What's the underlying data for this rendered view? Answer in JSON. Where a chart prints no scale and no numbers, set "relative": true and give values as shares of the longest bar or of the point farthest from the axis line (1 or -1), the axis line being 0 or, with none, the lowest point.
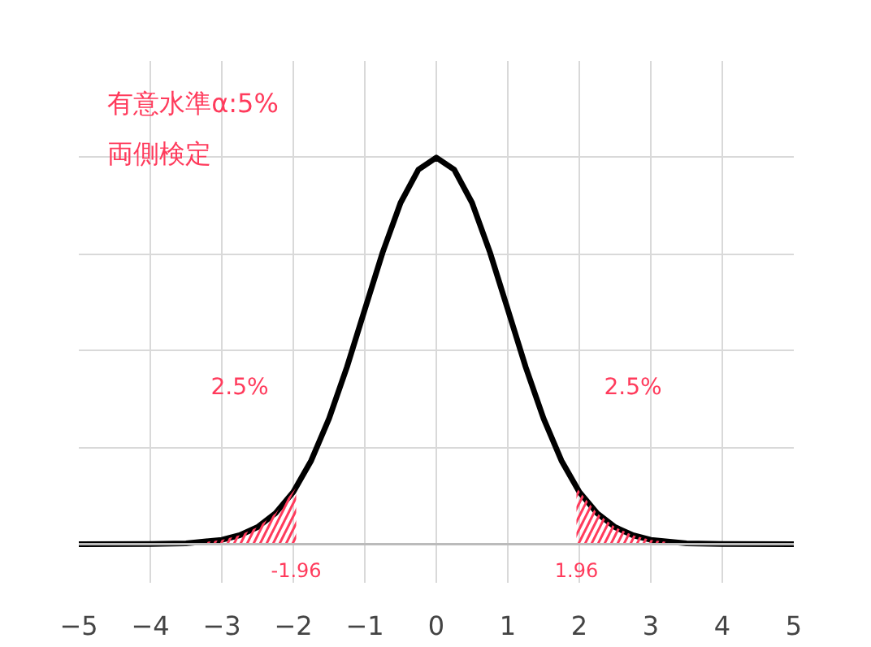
{
  "chart_data": {
    "type": "line",
    "relative": true,
    "grid": true,
    "tick_labels": "x",
    "xlim": [
      -5,
      5
    ],
    "xticks": [
      -5,
      -4,
      -3,
      -2,
      -1,
      0,
      1,
      2,
      3,
      4,
      5
    ],
    "series": [
      {
        "color": "#000000",
        "x": [
          -5,
          -4,
          -3.5,
          -3,
          -2.75,
          -2.5,
          -2.25,
          -2,
          -1.75,
          -1.5,
          -1.25,
          -1,
          -0.75,
          -0.5,
          -0.25,
          0,
          0.25,
          0.5,
          0.75,
          1,
          1.25,
          1.5,
          1.75,
          2,
          2.25,
          2.5,
          2.75,
          3,
          3.5,
          4,
          5
        ],
        "values": [
          0,
          0.0003,
          0.002,
          0.011,
          0.023,
          0.044,
          0.08,
          0.135,
          0.216,
          0.325,
          0.458,
          0.607,
          0.755,
          0.883,
          0.969,
          1,
          0.969,
          0.883,
          0.755,
          0.607,
          0.458,
          0.325,
          0.216,
          0.135,
          0.08,
          0.044,
          0.023,
          0.011,
          0.002,
          0.0003,
          0
        ]
      },
      {
        "type": "area",
        "color": "#ff3b5c",
        "x": [
          -3.25,
          -3,
          -2.75,
          -2.5,
          -2.25,
          -1.96
        ],
        "values": [
          0.005,
          0.011,
          0.023,
          0.044,
          0.08,
          0.146
        ]
      },
      {
        "type": "area",
        "color": "#ff3b5c",
        "x": [
          1.96,
          2.25,
          2.5,
          2.75,
          3,
          3.25
        ],
        "values": [
          0.146,
          0.08,
          0.044,
          0.023,
          0.011,
          0.005
        ]
      }
    ],
    "annotations": [
      "有意水準α:5%",
      "両側検定",
      "2.5%",
      "2.5%",
      "-1.96",
      "1.96"
    ]
  }
}
